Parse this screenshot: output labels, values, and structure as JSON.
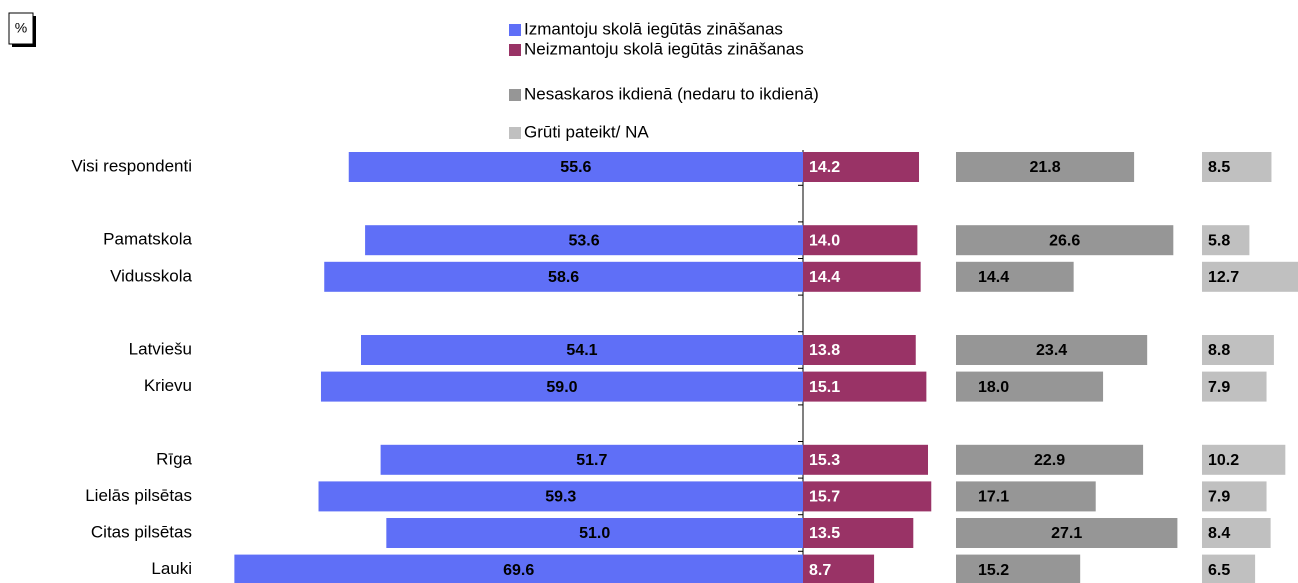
{
  "chart_data": {
    "type": "bar",
    "title": "%",
    "categories": [
      "Visi respondenti",
      null,
      "Pamatskola",
      "Vidusskola",
      null,
      "Latviešu",
      "Krievu",
      null,
      "Rīga",
      "Lielās pilsētas",
      "Citas pilsētas",
      "Lauki"
    ],
    "series": [
      {
        "name": "Izmantoju skolā iegūtās zināšanas",
        "color": "#5f6ff7",
        "values": [
          55.6,
          null,
          53.6,
          58.6,
          null,
          54.1,
          59.0,
          null,
          51.7,
          59.3,
          51.0,
          69.6
        ],
        "value_labels": [
          "55.6",
          null,
          "53.6",
          "58.6",
          null,
          "54.1",
          "59.0",
          null,
          "51.7",
          "59.3",
          "51.0",
          "69.6"
        ]
      },
      {
        "name": "Neizmantoju skolā iegūtās zināšanas",
        "color": "#993366",
        "values": [
          14.2,
          null,
          14.0,
          14.4,
          null,
          13.8,
          15.1,
          null,
          15.3,
          15.7,
          13.5,
          8.7
        ],
        "value_labels": [
          "14.2",
          null,
          "14.0",
          "14.4",
          null,
          "13.8",
          "15.1",
          null,
          "15.3",
          "15.7",
          "13.5",
          "8.7"
        ]
      },
      {
        "name": "Nesaskaros ikdienā (nedaru to ikdienā)",
        "color": "#969696",
        "values": [
          21.8,
          null,
          26.6,
          14.4,
          null,
          23.4,
          18.0,
          null,
          22.9,
          17.1,
          27.1,
          15.2
        ],
        "value_labels": [
          "21.8",
          null,
          "26.6",
          "14.4",
          null,
          "23.4",
          "18.0",
          null,
          "22.9",
          "17.1",
          "27.1",
          "15.2"
        ]
      },
      {
        "name": "Grūti pateikt/ NA",
        "color": "#c0c0c0",
        "values": [
          8.5,
          null,
          5.8,
          12.7,
          null,
          8.8,
          7.9,
          null,
          10.2,
          7.9,
          8.4,
          6.5
        ],
        "value_labels": [
          "8.5",
          null,
          "5.8",
          "12.7",
          null,
          "8.8",
          "7.9",
          null,
          "10.2",
          "7.9",
          "8.4",
          "6.5"
        ]
      }
    ]
  }
}
